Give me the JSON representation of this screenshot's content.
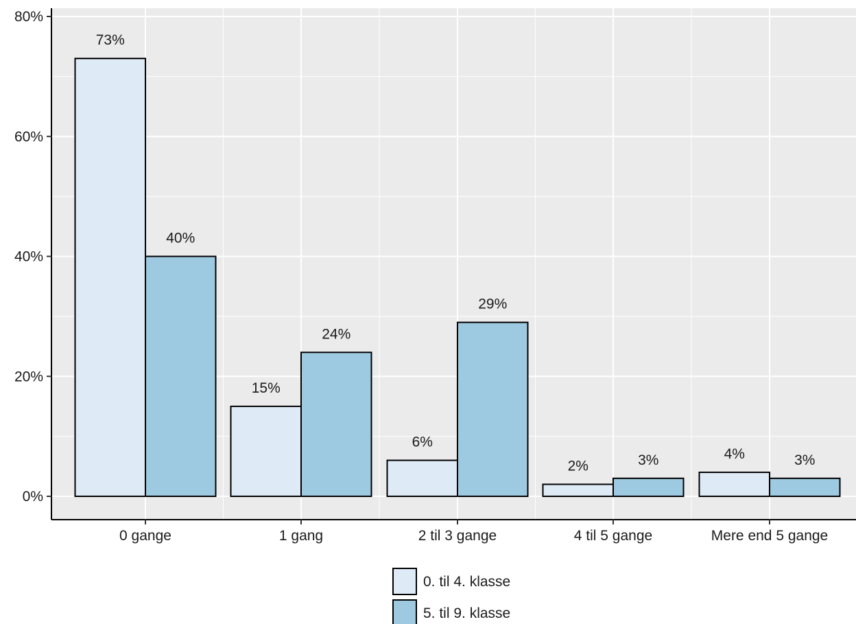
{
  "chart_data": {
    "type": "bar",
    "title": "",
    "xlabel": "",
    "ylabel": "",
    "categories": [
      "0 gange",
      "1 gang",
      "2 til 3 gange",
      "4 til 5 gange",
      "Mere end 5 gange"
    ],
    "series": [
      {
        "name": "0. til 4. klasse",
        "values": [
          73,
          15,
          6,
          2,
          4
        ],
        "labels": [
          "73%",
          "15%",
          "6%",
          "2%",
          "4%"
        ],
        "color": "#deebf7"
      },
      {
        "name": "5. til 9. klasse",
        "values": [
          40,
          24,
          29,
          3,
          3
        ],
        "labels": [
          "40%",
          "24%",
          "29%",
          "3%",
          "3%"
        ],
        "color": "#9ecae1"
      }
    ],
    "ylim": [
      0,
      80
    ],
    "yticks": [
      0,
      20,
      40,
      60,
      80
    ],
    "ytick_labels": [
      "0%",
      "20%",
      "40%",
      "60%",
      "80%"
    ],
    "grid": true,
    "legend_position": "bottom",
    "colors": {
      "panel": "#ebebeb",
      "grid": "#ffffff",
      "bar_outline": "#000000",
      "text": "#1a1a1a"
    }
  }
}
